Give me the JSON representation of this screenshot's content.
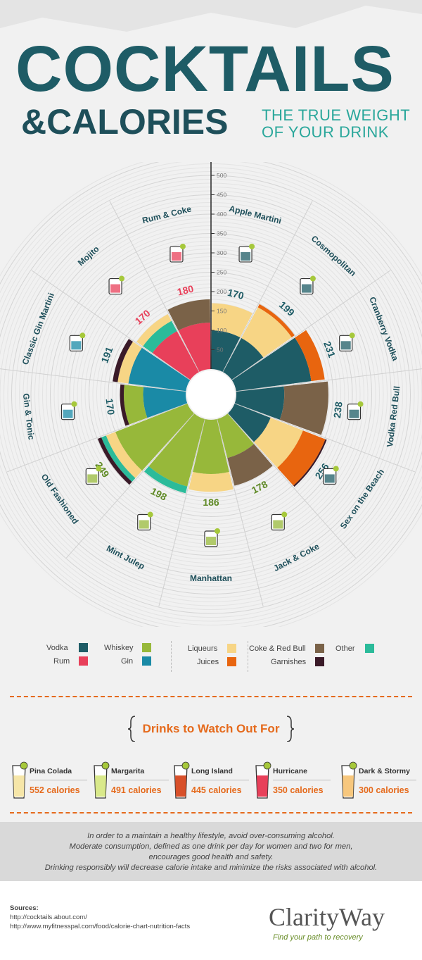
{
  "header": {
    "title_line1": "COCKTAILS",
    "title_line2": "&CALORIES",
    "subtitle_line1": "THE TRUE WEIGHT",
    "subtitle_line2": "OF YOUR DRINK"
  },
  "colors": {
    "Vodka": "#1e5c66",
    "Rum": "#e8405a",
    "Whiskey": "#97b83a",
    "Gin": "#1a8aa6",
    "Liqueurs": "#f7d585",
    "Coke & Red Bull": "#7a6248",
    "Juices": "#e8650f",
    "Garnishes": "#3a1a28",
    "Other": "#2bbb9a"
  },
  "chart_data": {
    "type": "radial-stacked-bar",
    "scale_ticks": [
      550,
      500,
      450,
      400,
      350,
      300,
      250,
      200,
      150,
      100,
      50
    ],
    "legend": [
      {
        "name": "Vodka",
        "color": "#1e5c66"
      },
      {
        "name": "Rum",
        "color": "#e8405a"
      },
      {
        "name": "Whiskey",
        "color": "#97b83a"
      },
      {
        "name": "Gin",
        "color": "#1a8aa6"
      },
      {
        "name": "Liqueurs",
        "color": "#f7d585"
      },
      {
        "name": "Juices",
        "color": "#e8650f"
      },
      {
        "name": "Coke & Red Bull",
        "color": "#7a6248"
      },
      {
        "name": "Garnishes",
        "color": "#3a1a28"
      },
      {
        "name": "Other",
        "color": "#2bbb9a"
      }
    ],
    "drinks": [
      {
        "name": "Apple Martini",
        "total": "170",
        "segments": [
          [
            "Vodka",
            100
          ],
          [
            "Liqueurs",
            70
          ]
        ]
      },
      {
        "name": "Cosmopolitan",
        "total": "199",
        "segments": [
          [
            "Vodka",
            100
          ],
          [
            "Liqueurs",
            90
          ],
          [
            "Juices",
            9
          ]
        ]
      },
      {
        "name": "Cranberry Vodka",
        "total": "231",
        "segments": [
          [
            "Vodka",
            196
          ],
          [
            "Juices",
            35
          ]
        ]
      },
      {
        "name": "Vodka Red Bull",
        "total": "238",
        "segments": [
          [
            "Vodka",
            124
          ],
          [
            "Coke & Red Bull",
            114
          ]
        ]
      },
      {
        "name": "Sex on the Beach",
        "total": "256",
        "segments": [
          [
            "Vodka",
            100
          ],
          [
            "Liqueurs",
            90
          ],
          [
            "Juices",
            62
          ],
          [
            "Garnishes",
            4
          ]
        ]
      },
      {
        "name": "Jack & Coke",
        "total": "178",
        "segments": [
          [
            "Whiskey",
            104
          ],
          [
            "Coke & Red Bull",
            74
          ]
        ]
      },
      {
        "name": "Manhattan",
        "total": "186",
        "segments": [
          [
            "Whiskey",
            140
          ],
          [
            "Liqueurs",
            46
          ]
        ]
      },
      {
        "name": "Mint Julep",
        "total": "198",
        "segments": [
          [
            "Whiskey",
            180
          ],
          [
            "Other",
            18
          ]
        ]
      },
      {
        "name": "Old Fashioned",
        "total": "249",
        "segments": [
          [
            "Whiskey",
            200
          ],
          [
            "Liqueurs",
            26
          ],
          [
            "Other",
            13
          ],
          [
            "Garnishes",
            10
          ]
        ]
      },
      {
        "name": "Gin & Tonic",
        "total": "170",
        "segments": [
          [
            "Gin",
            110
          ],
          [
            "Whiskey",
            50
          ],
          [
            "Garnishes",
            10
          ]
        ]
      },
      {
        "name": "Classic Gin Martini",
        "total": "191",
        "segments": [
          [
            "Gin",
            150
          ],
          [
            "Liqueurs",
            28
          ],
          [
            "Garnishes",
            13
          ]
        ]
      },
      {
        "name": "Mojito",
        "total": "170",
        "segments": [
          [
            "Rum",
            120
          ],
          [
            "Other",
            30
          ],
          [
            "Liqueurs",
            20
          ]
        ]
      },
      {
        "name": "Rum & Coke",
        "total": "180",
        "segments": [
          [
            "Rum",
            120
          ],
          [
            "Coke & Red Bull",
            60
          ]
        ]
      }
    ]
  },
  "watch": {
    "title": "Drinks to Watch Out For",
    "items": [
      {
        "name": "Pina Colada",
        "calories": "552 calories"
      },
      {
        "name": "Margarita",
        "calories": "491 calories"
      },
      {
        "name": "Long Island",
        "calories": "445 calories"
      },
      {
        "name": "Hurricane",
        "calories": "350 calories"
      },
      {
        "name": "Dark & Stormy",
        "calories": "300 calories"
      }
    ]
  },
  "disclaimer": {
    "line1": "In order to a maintain a healthy lifestyle, avoid over-consuming alcohol.",
    "line2": "Moderate consumption, defined as one drink per day for women and two for men,",
    "line3": "encourages good health and safety.",
    "line4": "Drinking responsibly will decrease calorie intake and minimize the risks associated with alcohol."
  },
  "footer": {
    "sources_label": "Sources:",
    "source1": "http://cocktails.about.com/",
    "source2": "http://www.myfitnesspal.com/food/calorie-chart-nutrition-facts",
    "logo": "ClarityWay",
    "tagline": "Find your path to recovery"
  }
}
